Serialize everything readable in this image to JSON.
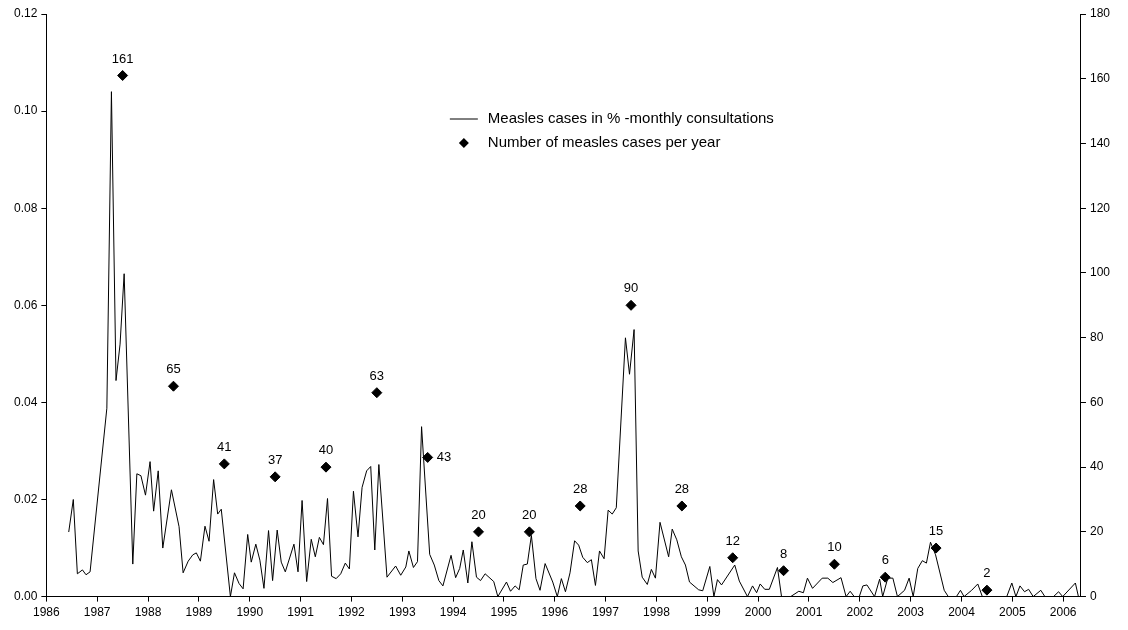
{
  "chart_data": {
    "type": "line",
    "legend": "top right",
    "grid": false,
    "xlim": [
      1986,
      2006.35
    ],
    "xticks": [
      1986,
      1987,
      1988,
      1989,
      1990,
      1991,
      1992,
      1993,
      1994,
      1995,
      1996,
      1997,
      1998,
      1999,
      2000,
      2001,
      2002,
      2003,
      2004,
      2005,
      2006
    ],
    "ylim": [
      0,
      0.12
    ],
    "yticks": [
      {
        "value": 0,
        "label": "0.00"
      },
      {
        "value": 0.02,
        "label": "0.02"
      },
      {
        "value": 0.04,
        "label": "0.04"
      },
      {
        "value": 0.06,
        "label": "0.06"
      },
      {
        "value": 0.08,
        "label": "0.08"
      },
      {
        "value": 0.1,
        "label": "0.10"
      },
      {
        "value": 0.12,
        "label": "0.12"
      }
    ],
    "y2lim": [
      0,
      180
    ],
    "y2ticks": [
      0,
      20,
      40,
      60,
      80,
      100,
      120,
      140,
      160,
      180
    ],
    "series": [
      {
        "name": "Measles cases in % -monthly consultations",
        "type": "line",
        "color": "#000000",
        "marker": "none",
        "x": [
          1986.44,
          1986.53,
          1986.61,
          1986.71,
          1986.78,
          1986.86,
          1987.19,
          1987.28,
          1987.37,
          1987.45,
          1987.53,
          1987.7,
          1987.78,
          1987.86,
          1987.95,
          1988.04,
          1988.11,
          1988.2,
          1988.29,
          1988.46,
          1988.61,
          1988.69,
          1988.79,
          1988.88,
          1988.95,
          1989.03,
          1989.12,
          1989.2,
          1989.29,
          1989.37,
          1989.44,
          1989.62,
          1989.7,
          1989.79,
          1989.87,
          1989.96,
          1990.03,
          1990.12,
          1990.2,
          1990.28,
          1990.37,
          1990.45,
          1990.54,
          1990.62,
          1990.7,
          1990.87,
          1990.95,
          1991.03,
          1991.12,
          1991.21,
          1991.29,
          1991.37,
          1991.45,
          1991.53,
          1991.61,
          1991.7,
          1991.79,
          1991.88,
          1991.96,
          1992.04,
          1992.13,
          1992.21,
          1992.3,
          1992.38,
          1992.46,
          1992.54,
          1992.7,
          1992.87,
          1992.97,
          1993.07,
          1993.13,
          1993.22,
          1993.3,
          1993.38,
          1993.54,
          1993.63,
          1993.72,
          1993.8,
          1993.96,
          1994.05,
          1994.13,
          1994.2,
          1994.29,
          1994.37,
          1994.46,
          1994.54,
          1994.63,
          1994.8,
          1994.88,
          1995.05,
          1995.13,
          1995.22,
          1995.3,
          1995.38,
          1995.46,
          1995.54,
          1995.63,
          1995.71,
          1995.81,
          1995.96,
          1996.05,
          1996.13,
          1996.21,
          1996.3,
          1996.39,
          1996.47,
          1996.55,
          1996.64,
          1996.72,
          1996.8,
          1996.88,
          1996.97,
          1997.05,
          1997.13,
          1997.21,
          1997.39,
          1997.47,
          1997.56,
          1997.64,
          1997.72,
          1997.82,
          1997.9,
          1997.98,
          1998.07,
          1998.24,
          1998.31,
          1998.4,
          1998.49,
          1998.57,
          1998.65,
          1998.83,
          1998.91,
          1999.05,
          1999.13,
          1999.2,
          1999.28,
          1999.54,
          1999.63,
          1999.79,
          1999.89,
          1999.97,
          2000.04,
          2000.13,
          2000.22,
          2000.38,
          2000.46,
          2000.64,
          2000.8,
          2000.89,
          2000.97,
          2001.07,
          2001.26,
          2001.37,
          2001.47,
          2001.63,
          2001.73,
          2001.81,
          2001.89,
          2001.99,
          2002.06,
          2002.14,
          2002.29,
          2002.39,
          2002.45,
          2002.55,
          2002.65,
          2002.74,
          2002.88,
          2002.97,
          2003.05,
          2003.14,
          2003.23,
          2003.31,
          2003.39,
          2003.49,
          2003.66,
          2003.74,
          2003.9,
          2003.98,
          2004.05,
          2004.2,
          2004.32,
          2004.41,
          2004.89,
          2004.99,
          2005.07,
          2005.15,
          2005.24,
          2005.32,
          2005.41,
          2005.56,
          2005.64,
          2005.81,
          2005.91,
          2005.99,
          2006.24,
          2006.3
        ],
        "values": [
          0.0133,
          0.02,
          0.0047,
          0.0055,
          0.0045,
          0.0051,
          0.0388,
          0.104,
          0.0445,
          0.052,
          0.0665,
          0.0067,
          0.0253,
          0.0249,
          0.0209,
          0.0278,
          0.0176,
          0.0259,
          0.01,
          0.022,
          0.0144,
          0.0049,
          0.0073,
          0.0086,
          0.009,
          0.0073,
          0.0145,
          0.0114,
          0.0241,
          0.017,
          0.018,
          0,
          0.0049,
          0.0027,
          0.0016,
          0.0128,
          0.0071,
          0.0108,
          0.0075,
          0.0017,
          0.0136,
          0.0033,
          0.0137,
          0.0071,
          0.0051,
          0.0108,
          0.0051,
          0.0198,
          0.0031,
          0.0118,
          0.0082,
          0.0122,
          0.0107,
          0.0202,
          0.0042,
          0.0037,
          0.0047,
          0.0069,
          0.0057,
          0.0217,
          0.0123,
          0.0225,
          0.0259,
          0.0268,
          0.0096,
          0.0272,
          0.004,
          0.0063,
          0.0044,
          0.0061,
          0.0094,
          0.006,
          0.0072,
          0.035,
          0.0087,
          0.0065,
          0.0033,
          0.0022,
          0.0085,
          0.0039,
          0.0058,
          0.0096,
          0.0028,
          0.0113,
          0.004,
          0.0033,
          0.0047,
          0.0031,
          0,
          0.003,
          0.0011,
          0.0022,
          0.0014,
          0.0065,
          0.0067,
          0.0126,
          0.0037,
          0.0013,
          0.0068,
          0.003,
          0,
          0.0037,
          0.001,
          0.0049,
          0.0115,
          0.0106,
          0.0081,
          0.007,
          0.0076,
          0.0023,
          0.0094,
          0.0078,
          0.0178,
          0.017,
          0.0183,
          0.0533,
          0.0458,
          0.055,
          0.0094,
          0.004,
          0.0025,
          0.0056,
          0.0038,
          0.0153,
          0.0082,
          0.0139,
          0.0117,
          0.0082,
          0.0065,
          0.003,
          0.0014,
          0.0012,
          0.0062,
          0,
          0.0035,
          0.0024,
          0.0065,
          0.0032,
          0,
          0.0022,
          0.0008,
          0.0026,
          0.0015,
          0.0015,
          0.006,
          0,
          0,
          0.0011,
          0.0008,
          0.0038,
          0.0017,
          0.0038,
          0.0038,
          0.0029,
          0.0039,
          0,
          0.0011,
          0,
          0,
          0.0022,
          0.0024,
          0,
          0.0036,
          0,
          0.0038,
          0.0038,
          0,
          0.0013,
          0.0038,
          0,
          0.0058,
          0.0074,
          0.0069,
          0.0112,
          0.0086,
          0.0013,
          0,
          0,
          0.0013,
          0,
          0.0013,
          0.0026,
          0,
          0,
          0.0028,
          0,
          0.0022,
          0.001,
          0.0015,
          0,
          0.0013,
          0,
          0,
          0.001,
          0,
          0.0028,
          0
        ]
      },
      {
        "name": "Number of measles cases per year",
        "type": "scatter",
        "axis": "y2",
        "color": "#000000",
        "marker": "diamond",
        "data_labels": true,
        "x": [
          1987.5,
          1988.5,
          1989.5,
          1990.5,
          1991.5,
          1992.5,
          1993.5,
          1994.5,
          1995.5,
          1996.5,
          1997.5,
          1998.5,
          1999.5,
          2000.5,
          2001.5,
          2002.5,
          2003.5,
          2004.5
        ],
        "values": [
          161,
          65,
          41,
          37,
          40,
          63,
          43,
          20,
          20,
          28,
          90,
          28,
          12,
          8,
          10,
          6,
          15,
          2
        ]
      }
    ]
  }
}
